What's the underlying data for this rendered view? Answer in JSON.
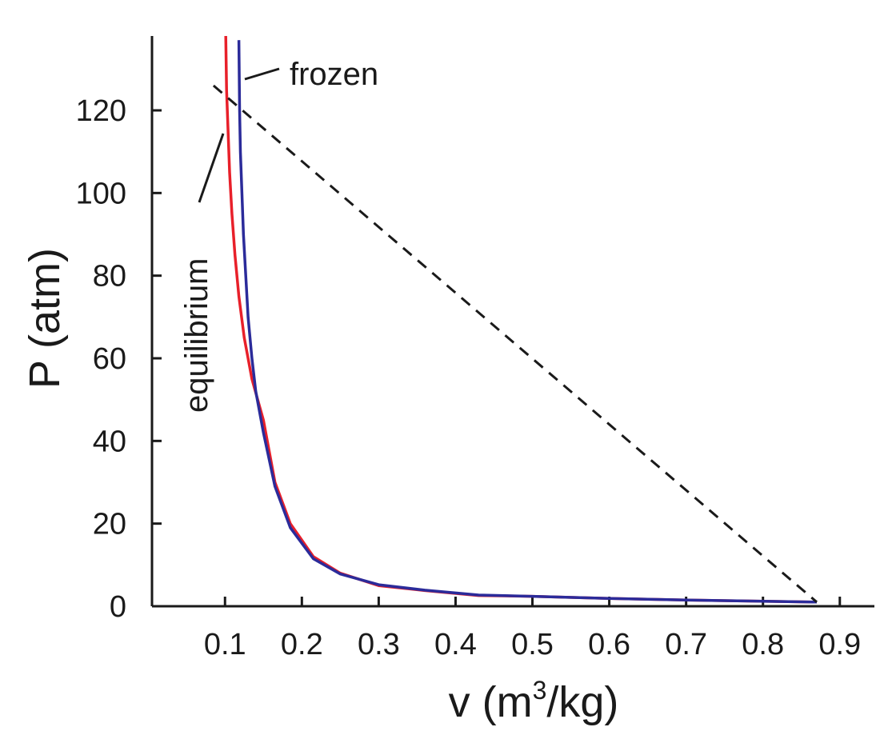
{
  "chart_data": {
    "type": "line",
    "xlabel_main": "v (m",
    "xlabel_sup": "3",
    "xlabel_tail": "/kg)",
    "ylabel": "P (atm)",
    "xlim": [
      0.005,
      0.945
    ],
    "ylim": [
      0,
      138
    ],
    "x_ticks": [
      "0.1",
      "0.2",
      "0.3",
      "0.4",
      "0.5",
      "0.6",
      "0.7",
      "0.8",
      "0.9"
    ],
    "x_tick_values": [
      0.1,
      0.2,
      0.3,
      0.4,
      0.5,
      0.6,
      0.7,
      0.8,
      0.9
    ],
    "y_ticks": [
      "0",
      "20",
      "40",
      "60",
      "80",
      "100",
      "120"
    ],
    "y_tick_values": [
      0,
      20,
      40,
      60,
      80,
      100,
      120
    ],
    "series": [
      {
        "name": "equilibrium",
        "color": "#e8202a",
        "x": [
          0.101,
          0.102,
          0.104,
          0.106,
          0.109,
          0.113,
          0.118,
          0.125,
          0.135,
          0.15,
          0.165,
          0.185,
          0.215,
          0.25,
          0.3,
          0.36,
          0.43,
          0.5,
          0.6,
          0.7,
          0.8,
          0.87
        ],
        "y": [
          138,
          125,
          115,
          105,
          95,
          85,
          75,
          65,
          55,
          45,
          30,
          20,
          12,
          8,
          5,
          3.8,
          2.6,
          2.4,
          1.9,
          1.5,
          1.2,
          1.0
        ]
      },
      {
        "name": "frozen",
        "color": "#2b2b9a",
        "x": [
          0.118,
          0.119,
          0.12,
          0.122,
          0.124,
          0.127,
          0.13,
          0.135,
          0.14,
          0.15,
          0.165,
          0.185,
          0.215,
          0.25,
          0.3,
          0.36,
          0.43,
          0.5,
          0.6,
          0.7,
          0.8,
          0.87
        ],
        "y": [
          137,
          120,
          110,
          100,
          90,
          80,
          70,
          60,
          52,
          42,
          29,
          19,
          11.5,
          7.8,
          5.2,
          3.9,
          2.7,
          2.4,
          1.9,
          1.5,
          1.2,
          1.0
        ]
      },
      {
        "color": "#1a1a1a",
        "dashed": true,
        "x": [
          0.085,
          0.87
        ],
        "y": [
          126,
          1.0
        ]
      }
    ],
    "annotations": [
      {
        "text": "frozen"
      },
      {
        "text": "equilibrium"
      }
    ],
    "grid": false
  }
}
